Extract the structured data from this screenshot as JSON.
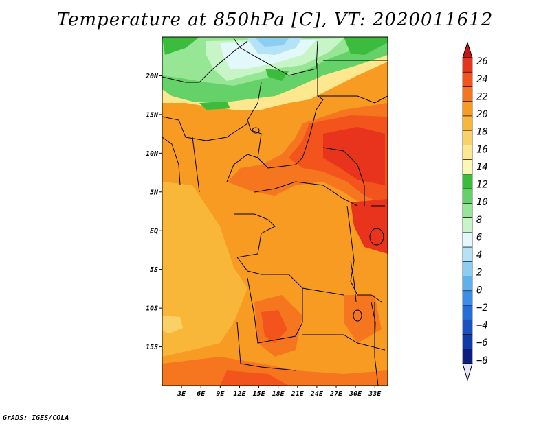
{
  "title": "Temperature at 850hPa [C], VT: 2020011612",
  "footer": "GrADS: IGES/COLA",
  "map": {
    "lon_range": [
      0,
      35
    ],
    "lat_range": [
      -20,
      25
    ],
    "lat_ticks": [
      {
        "v": 20,
        "label": "20N"
      },
      {
        "v": 15,
        "label": "15N"
      },
      {
        "v": 10,
        "label": "10N"
      },
      {
        "v": 5,
        "label": "5N"
      },
      {
        "v": 0,
        "label": "EQ"
      },
      {
        "v": -5,
        "label": "5S"
      },
      {
        "v": -10,
        "label": "10S"
      },
      {
        "v": -15,
        "label": "15S"
      }
    ],
    "lon_ticks": [
      {
        "v": 3,
        "label": "3E"
      },
      {
        "v": 6,
        "label": "6E"
      },
      {
        "v": 9,
        "label": "9E"
      },
      {
        "v": 12,
        "label": "12E"
      },
      {
        "v": 15,
        "label": "15E"
      },
      {
        "v": 18,
        "label": "18E"
      },
      {
        "v": 21,
        "label": "21E"
      },
      {
        "v": 24,
        "label": "24E"
      },
      {
        "v": 27,
        "label": "27E"
      },
      {
        "v": 30,
        "label": "30E"
      },
      {
        "v": 33,
        "label": "33E"
      }
    ]
  },
  "colorbar": {
    "levels": [
      {
        "label": "26",
        "color": "#e8341c"
      },
      {
        "label": "24",
        "color": "#f2541b"
      },
      {
        "label": "22",
        "color": "#f5761e"
      },
      {
        "label": "20",
        "color": "#f79b23"
      },
      {
        "label": "18",
        "color": "#f9b73a"
      },
      {
        "label": "16",
        "color": "#fbd167"
      },
      {
        "label": "14",
        "color": "#fde88f"
      },
      {
        "label": "12",
        "color": "#fdf7b6"
      },
      {
        "label": "10",
        "color": "#3cbc3c"
      },
      {
        "label": "8",
        "color": "#64d268"
      },
      {
        "label": "6",
        "color": "#96e695"
      },
      {
        "label": "4",
        "color": "#c8f5c8"
      },
      {
        "label": "2",
        "color": "#e3f8fa"
      },
      {
        "label": "0",
        "color": "#b4e2f7"
      },
      {
        "label": "−2",
        "color": "#8ccdf2"
      },
      {
        "label": "−4",
        "color": "#5fb1ed"
      },
      {
        "label": "−6",
        "color": "#3c8fe6"
      },
      {
        "label": "−8",
        "color": "#236fd7"
      }
    ],
    "extra_colors": [
      "#1852c0",
      "#0e3ca6",
      "#0a1e82",
      "#e6e6fa"
    ],
    "top_arrow_color": "#c81414"
  }
}
